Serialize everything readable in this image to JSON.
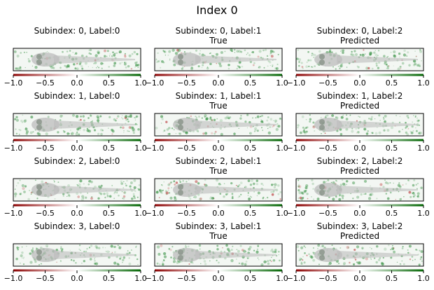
{
  "figure": {
    "title": "Index 0"
  },
  "colors": {
    "background": "#ffffff",
    "frame": "#000000",
    "strip_bg": "#f3f7f3",
    "fish_body": "#bcbcbc",
    "fish_eye": "#7f8a7f",
    "attribution_positive": "#2e8b3a",
    "attribution_negative": "#b22222",
    "colorbar_low": "#8b0000",
    "colorbar_mid": "#ffffff",
    "colorbar_high": "#006400"
  },
  "chart_data": {
    "type": "heatmap",
    "rows": 4,
    "cols": 3,
    "colorbar": {
      "range": [
        -1.0,
        1.0
      ],
      "ticks": [
        -1.0,
        -0.5,
        0.0,
        0.5,
        1.0
      ],
      "tick_labels": [
        "−1.0",
        "−0.5",
        "0.0",
        "0.5",
        "1.0"
      ],
      "colormap": "diverging red-white-green"
    },
    "panels": [
      {
        "subindex": 0,
        "label": 0,
        "title": "Subindex: 0, Label:0",
        "subtitle": ""
      },
      {
        "subindex": 0,
        "label": 1,
        "title": "Subindex: 0, Label:1",
        "subtitle": "True"
      },
      {
        "subindex": 0,
        "label": 2,
        "title": "Subindex: 0, Label:2",
        "subtitle": "Predicted"
      },
      {
        "subindex": 1,
        "label": 0,
        "title": "Subindex: 1, Label:0",
        "subtitle": ""
      },
      {
        "subindex": 1,
        "label": 1,
        "title": "Subindex: 1, Label:1",
        "subtitle": "True"
      },
      {
        "subindex": 1,
        "label": 2,
        "title": "Subindex: 1, Label:2",
        "subtitle": "Predicted"
      },
      {
        "subindex": 2,
        "label": 0,
        "title": "Subindex: 2, Label:0",
        "subtitle": ""
      },
      {
        "subindex": 2,
        "label": 1,
        "title": "Subindex: 2, Label:1",
        "subtitle": "True"
      },
      {
        "subindex": 2,
        "label": 2,
        "title": "Subindex: 2, Label:2",
        "subtitle": "Predicted"
      },
      {
        "subindex": 3,
        "label": 0,
        "title": "Subindex: 3, Label:0",
        "subtitle": ""
      },
      {
        "subindex": 3,
        "label": 1,
        "title": "Subindex: 3, Label:1",
        "subtitle": "True"
      },
      {
        "subindex": 3,
        "label": 2,
        "title": "Subindex: 3, Label:2",
        "subtitle": "Predicted"
      }
    ]
  }
}
